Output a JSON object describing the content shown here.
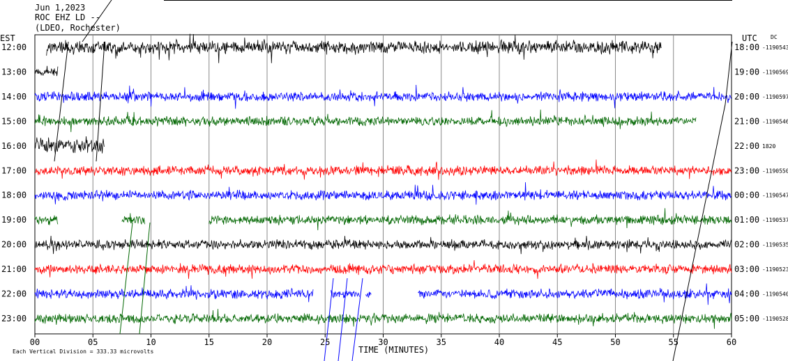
{
  "header": {
    "date": "Jun 1,2023",
    "station": "ROC EHZ LD --",
    "network": "(LDEO, Rochester)"
  },
  "chart_data": {
    "type": "line",
    "title": "Jun 1,2023",
    "left_axis_title": "EST",
    "right_axis_title": "UTC",
    "dc_label": "DC",
    "xlabel": "TIME (MINUTES)",
    "x_ticks": [
      "00",
      "05",
      "10",
      "15",
      "20",
      "25",
      "30",
      "35",
      "40",
      "45",
      "50",
      "55",
      "60"
    ],
    "xlim": [
      0,
      60
    ],
    "scale_note": "Each Vertical Division = 333.33 microvolts",
    "grid": true,
    "rows": [
      {
        "est": "12:00",
        "utc": "18:00",
        "dc": "-1190543",
        "color": "#000000",
        "segments": [
          [
            1,
            54
          ]
        ],
        "amp": 11
      },
      {
        "est": "13:00",
        "utc": "19:00",
        "dc": "-1190569",
        "color": "#000000",
        "segments": [
          [
            0,
            2
          ]
        ],
        "amp": 6
      },
      {
        "est": "14:00",
        "utc": "20:00",
        "dc": "-1190597",
        "color": "#0000ff",
        "segments": [
          [
            0,
            60
          ]
        ],
        "amp": 8
      },
      {
        "est": "15:00",
        "utc": "21:00",
        "dc": "-1190546",
        "color": "#006600",
        "segments": [
          [
            0,
            57
          ]
        ],
        "amp": 8
      },
      {
        "est": "16:00",
        "utc": "22:00",
        "dc": "1820",
        "color": "#000000",
        "segments": [
          [
            0,
            6
          ]
        ],
        "amp": 14
      },
      {
        "est": "17:00",
        "utc": "23:00",
        "dc": "-1190550",
        "color": "#ff0000",
        "segments": [
          [
            0,
            60
          ]
        ],
        "amp": 8
      },
      {
        "est": "18:00",
        "utc": "00:00",
        "dc": "-1190547",
        "color": "#0000ff",
        "segments": [
          [
            0,
            60
          ]
        ],
        "amp": 8
      },
      {
        "est": "19:00",
        "utc": "01:00",
        "dc": "-1190537",
        "color": "#006600",
        "segments": [
          [
            0,
            2
          ],
          [
            7.5,
            9.5
          ],
          [
            15,
            60
          ]
        ],
        "amp": 8
      },
      {
        "est": "20:00",
        "utc": "02:00",
        "dc": "-1190535",
        "color": "#000000",
        "segments": [
          [
            0,
            60
          ]
        ],
        "amp": 8
      },
      {
        "est": "21:00",
        "utc": "03:00",
        "dc": "-1190523",
        "color": "#ff0000",
        "segments": [
          [
            0,
            60
          ]
        ],
        "amp": 8
      },
      {
        "est": "22:00",
        "utc": "04:00",
        "dc": "-1190540",
        "color": "#0000ff",
        "segments": [
          [
            0,
            24
          ],
          [
            25.5,
            28
          ],
          [
            28.5,
            29
          ],
          [
            33,
            60
          ]
        ],
        "amp": 8
      },
      {
        "est": "23:00",
        "utc": "05:00",
        "dc": "-1190528",
        "color": "#006600",
        "segments": [
          [
            0,
            60
          ]
        ],
        "amp": 8
      }
    ]
  }
}
